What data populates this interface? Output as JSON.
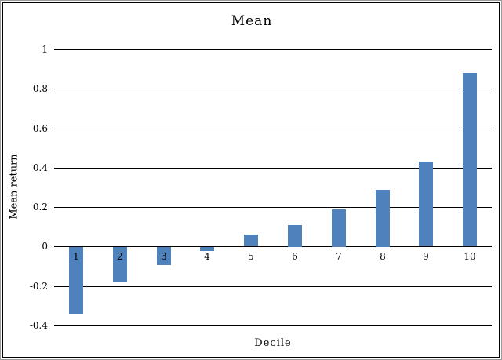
{
  "window": {
    "background_color": "#ffffff",
    "frame_border_color": "#000000",
    "outer_edge_color": "#9a9a9a"
  },
  "chart_data": {
    "type": "bar",
    "title": "Mean",
    "xlabel": "Decile",
    "ylabel": "Mean return",
    "categories": [
      "1",
      "2",
      "3",
      "4",
      "5",
      "6",
      "7",
      "8",
      "9",
      "10"
    ],
    "values": [
      -0.34,
      -0.18,
      -0.09,
      -0.02,
      0.06,
      0.11,
      0.19,
      0.29,
      0.43,
      0.88
    ],
    "ylim": [
      -0.4,
      1.0
    ],
    "yticks": [
      1,
      0.8,
      0.6,
      0.4,
      0.2,
      0,
      -0.2,
      -0.4
    ],
    "ytick_labels": [
      "1",
      "0.8",
      "0.6",
      "0.4",
      "0.2",
      "0",
      "-0.2",
      "-0.4"
    ],
    "grid": true,
    "legend": "none",
    "x_labels_position": "next-to-axis",
    "bar_color": "#4f81bd",
    "gridline_color": "#000000",
    "text_color": "#000000"
  }
}
